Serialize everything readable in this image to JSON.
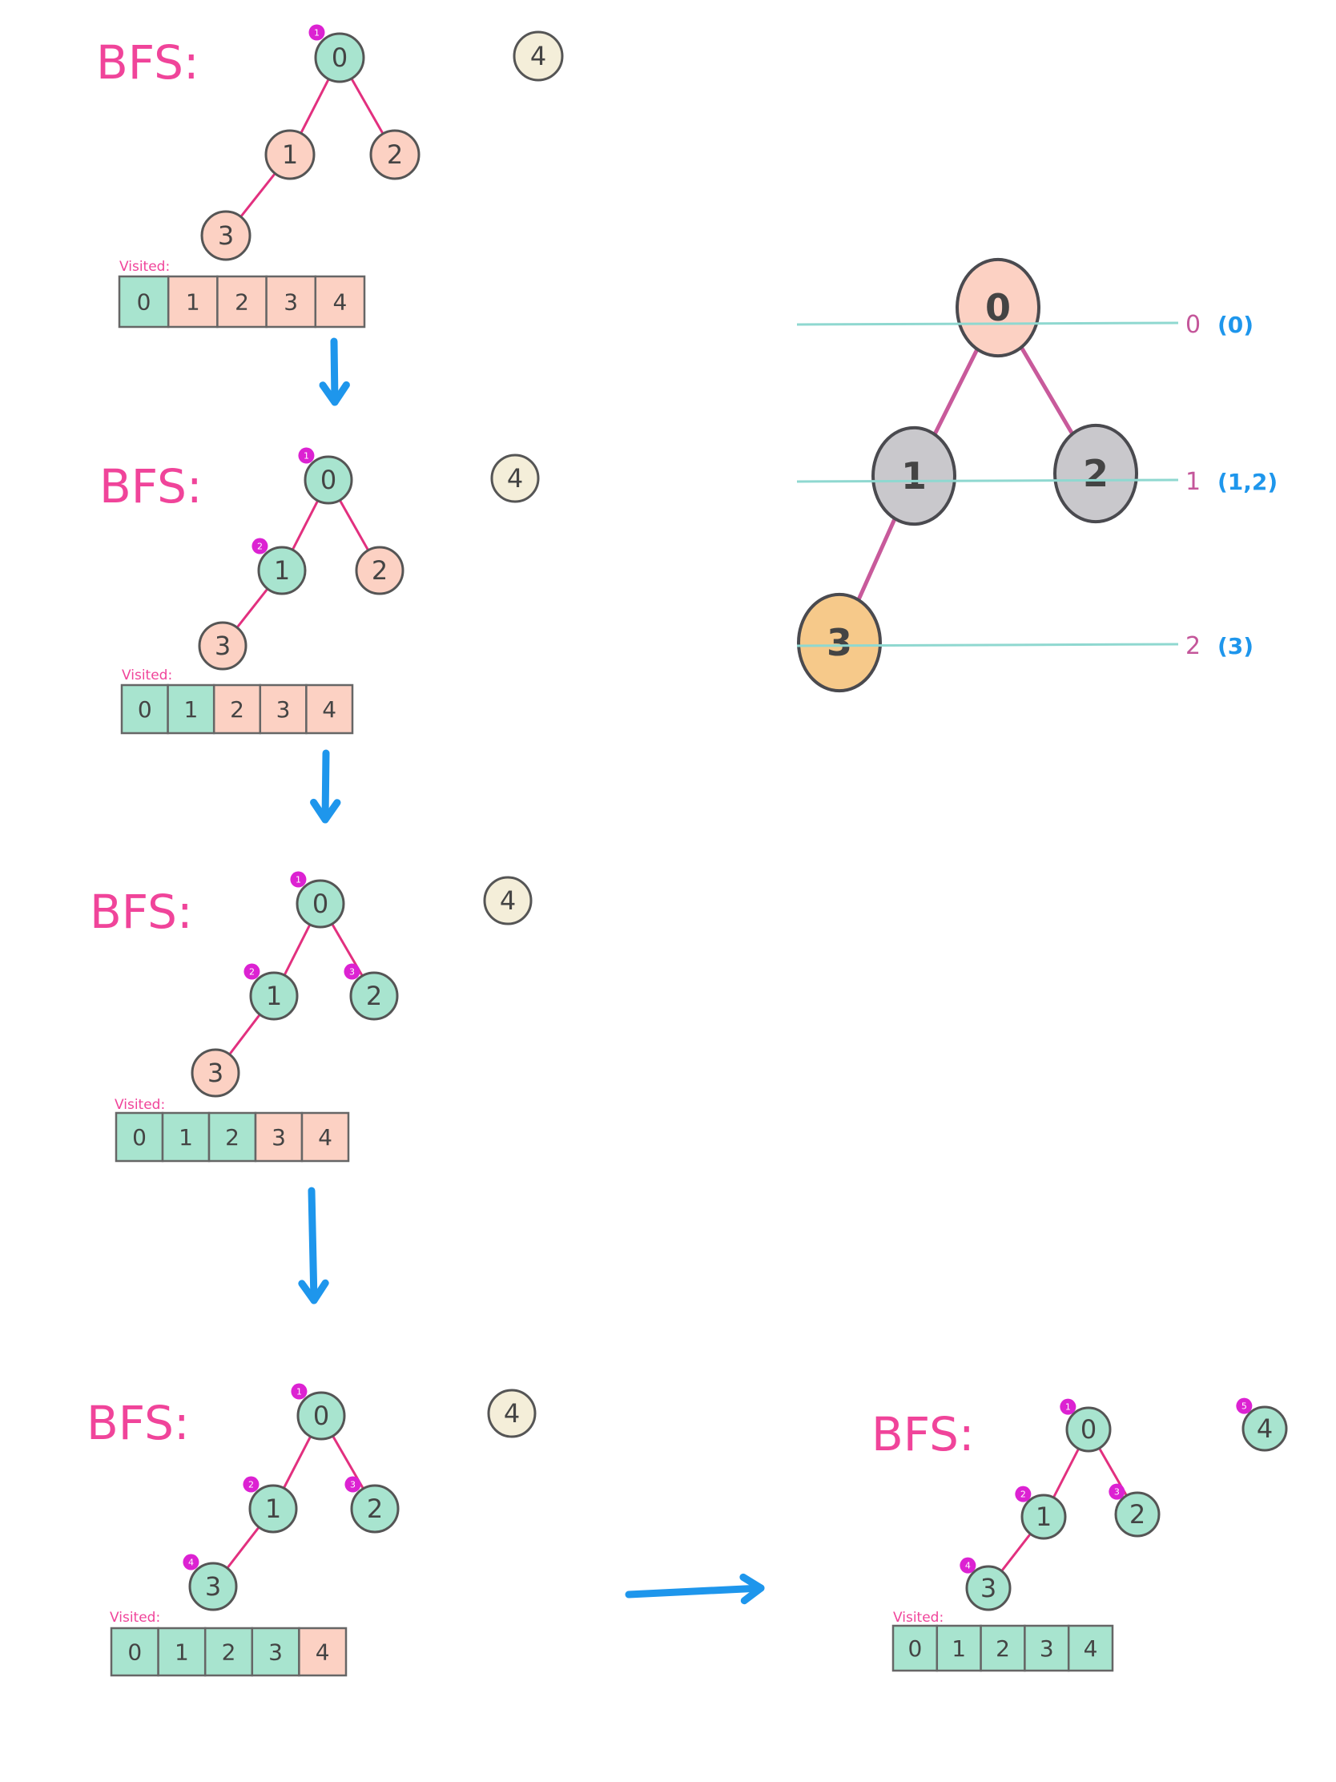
{
  "colors": {
    "visited": "#a8e4cf",
    "unvisited": "#fcd1c3",
    "isolated": "#f4eed9",
    "badge": "#dc22d2",
    "title": "#f0449a",
    "edge": "#e2307f",
    "arrow": "#1e96ec",
    "level_line": "#8fd8d0",
    "level_label": "#c4569a",
    "level_nodes": "#1e96ec",
    "right_root": "#fcd1c3",
    "right_mid": "#c9c8cc",
    "right_leaf": "#f6c98a",
    "right_edge": "#c85a9b"
  },
  "edges": [
    [
      "0",
      "1"
    ],
    [
      "0",
      "2"
    ],
    [
      "1",
      "3"
    ]
  ],
  "panels": [
    {
      "title": "BFS:",
      "visited_label": "Visited:",
      "nodes": [
        {
          "id": "0",
          "state": "visited",
          "badge": "1"
        },
        {
          "id": "1",
          "state": "unvisited",
          "badge": ""
        },
        {
          "id": "2",
          "state": "unvisited",
          "badge": ""
        },
        {
          "id": "3",
          "state": "unvisited",
          "badge": ""
        },
        {
          "id": "4",
          "state": "isolated",
          "badge": ""
        }
      ],
      "visited": [
        {
          "value": "0",
          "state": "visited"
        },
        {
          "value": "1",
          "state": "unvisited"
        },
        {
          "value": "2",
          "state": "unvisited"
        },
        {
          "value": "3",
          "state": "unvisited"
        },
        {
          "value": "4",
          "state": "unvisited"
        }
      ]
    },
    {
      "title": "BFS:",
      "visited_label": "Visited:",
      "nodes": [
        {
          "id": "0",
          "state": "visited",
          "badge": "1"
        },
        {
          "id": "1",
          "state": "visited",
          "badge": "2"
        },
        {
          "id": "2",
          "state": "unvisited",
          "badge": ""
        },
        {
          "id": "3",
          "state": "unvisited",
          "badge": ""
        },
        {
          "id": "4",
          "state": "isolated",
          "badge": ""
        }
      ],
      "visited": [
        {
          "value": "0",
          "state": "visited"
        },
        {
          "value": "1",
          "state": "visited"
        },
        {
          "value": "2",
          "state": "unvisited"
        },
        {
          "value": "3",
          "state": "unvisited"
        },
        {
          "value": "4",
          "state": "unvisited"
        }
      ]
    },
    {
      "title": "BFS:",
      "visited_label": "Visited:",
      "nodes": [
        {
          "id": "0",
          "state": "visited",
          "badge": "1"
        },
        {
          "id": "1",
          "state": "visited",
          "badge": "2"
        },
        {
          "id": "2",
          "state": "visited",
          "badge": "3"
        },
        {
          "id": "3",
          "state": "unvisited",
          "badge": ""
        },
        {
          "id": "4",
          "state": "isolated",
          "badge": ""
        }
      ],
      "visited": [
        {
          "value": "0",
          "state": "visited"
        },
        {
          "value": "1",
          "state": "visited"
        },
        {
          "value": "2",
          "state": "visited"
        },
        {
          "value": "3",
          "state": "unvisited"
        },
        {
          "value": "4",
          "state": "unvisited"
        }
      ]
    },
    {
      "title": "BFS:",
      "visited_label": "Visited:",
      "nodes": [
        {
          "id": "0",
          "state": "visited",
          "badge": "1"
        },
        {
          "id": "1",
          "state": "visited",
          "badge": "2"
        },
        {
          "id": "2",
          "state": "visited",
          "badge": "3"
        },
        {
          "id": "3",
          "state": "visited",
          "badge": "4"
        },
        {
          "id": "4",
          "state": "isolated",
          "badge": ""
        }
      ],
      "visited": [
        {
          "value": "0",
          "state": "visited"
        },
        {
          "value": "1",
          "state": "visited"
        },
        {
          "value": "2",
          "state": "visited"
        },
        {
          "value": "3",
          "state": "visited"
        },
        {
          "value": "4",
          "state": "unvisited"
        }
      ]
    },
    {
      "title": "BFS:",
      "visited_label": "Visited:",
      "nodes": [
        {
          "id": "0",
          "state": "visited",
          "badge": "1"
        },
        {
          "id": "1",
          "state": "visited",
          "badge": "2"
        },
        {
          "id": "2",
          "state": "visited",
          "badge": "3"
        },
        {
          "id": "3",
          "state": "visited",
          "badge": "4"
        },
        {
          "id": "4",
          "state": "visited",
          "badge": "5"
        }
      ],
      "visited": [
        {
          "value": "0",
          "state": "visited"
        },
        {
          "value": "1",
          "state": "visited"
        },
        {
          "value": "2",
          "state": "visited"
        },
        {
          "value": "3",
          "state": "visited"
        },
        {
          "value": "4",
          "state": "visited"
        }
      ]
    }
  ],
  "level_tree": {
    "nodes": [
      {
        "id": "0",
        "state": "right_root"
      },
      {
        "id": "1",
        "state": "right_mid"
      },
      {
        "id": "2",
        "state": "right_mid"
      },
      {
        "id": "3",
        "state": "right_leaf"
      }
    ],
    "levels": [
      {
        "level": "0",
        "nodes": "(0)"
      },
      {
        "level": "1",
        "nodes": "(1,2)"
      },
      {
        "level": "2",
        "nodes": "(3)"
      }
    ]
  }
}
